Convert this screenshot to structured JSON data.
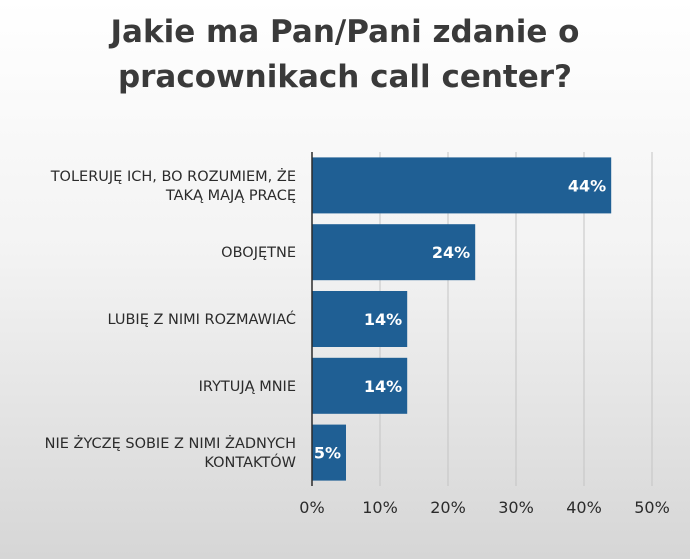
{
  "chart_data": {
    "type": "bar",
    "orientation": "horizontal",
    "title": "Jakie ma Pan/Pani zdanie o pracownikach call center?",
    "categories": [
      [
        "TOLERUJĘ ICH, BO ROZUMIEM, ŻE",
        "TAKĄ MAJĄ PRACĘ"
      ],
      [
        "OBOJĘTNE"
      ],
      [
        "LUBIĘ Z NIMI ROZMAWIAĆ"
      ],
      [
        "IRYTUJĄ MNIE"
      ],
      [
        "NIE ŻYCZĘ SOBIE Z NIMI ŻADNYCH",
        "KONTAKTÓW"
      ]
    ],
    "values": [
      44,
      24,
      14,
      14,
      5
    ],
    "data_labels": [
      "44%",
      "24%",
      "14%",
      "14%",
      "5%"
    ],
    "xlim": [
      0,
      50
    ],
    "ticks": [
      0,
      10,
      20,
      30,
      40,
      50
    ],
    "tick_labels": [
      "0%",
      "10%",
      "20%",
      "30%",
      "40%",
      "50%"
    ],
    "grid": true,
    "legend": "none",
    "colors": {
      "bar": "#1f5f94",
      "grid": "#c4c4c4",
      "axis": "#2b2b2b",
      "title": "#3a3a3a"
    }
  }
}
